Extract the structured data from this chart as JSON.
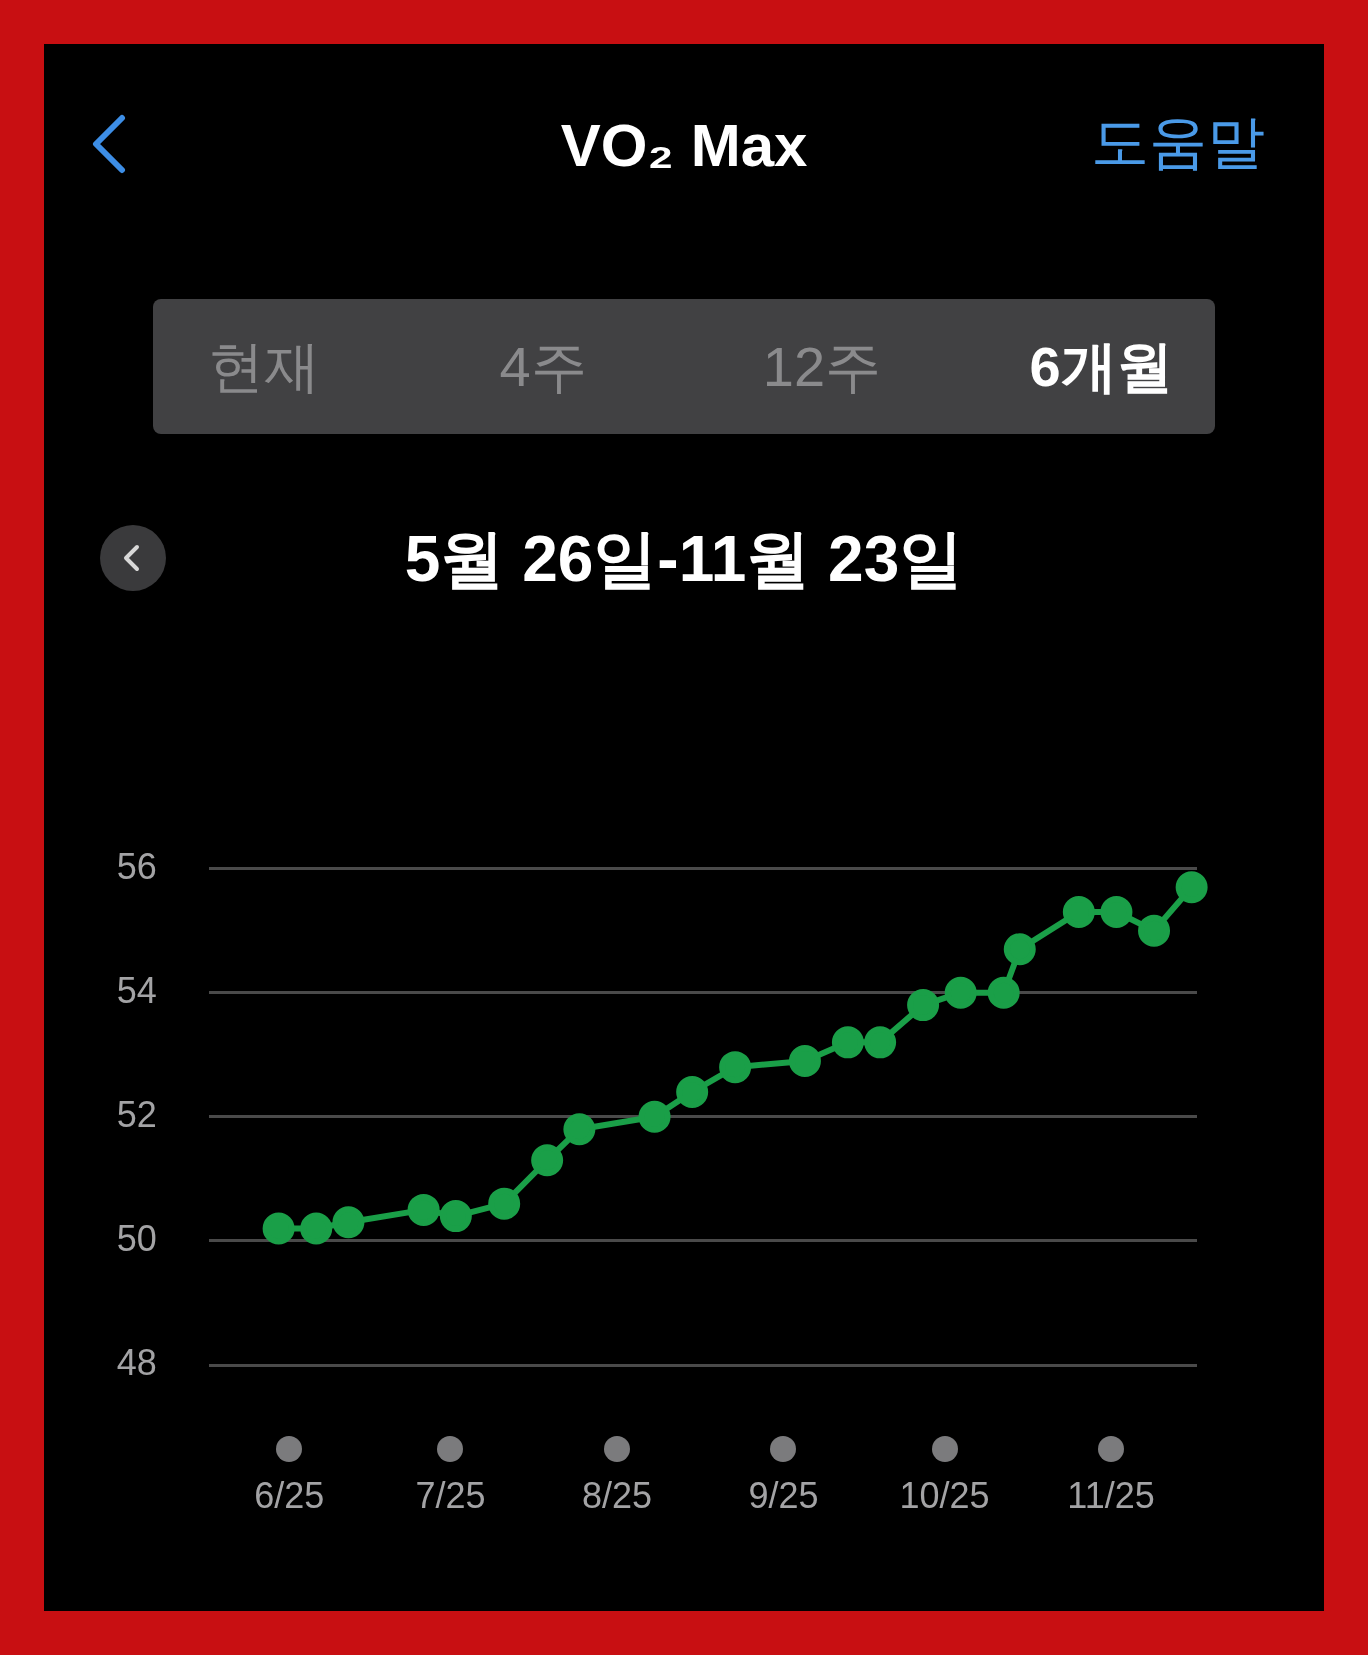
{
  "chart_data": {
    "type": "line",
    "title": "VO₂ Max",
    "subtitle": "5월 26일-11월 23일",
    "annotations": [
      "도움말",
      "현재",
      "4주",
      "12주",
      "6개월"
    ],
    "x": [
      "2025-05-30",
      "2025-06-06",
      "2025-06-12",
      "2025-06-26",
      "2025-07-02",
      "2025-07-11",
      "2025-07-19",
      "2025-07-25",
      "2025-08-08",
      "2025-08-15",
      "2025-08-23",
      "2025-09-05",
      "2025-09-13",
      "2025-09-19",
      "2025-09-27",
      "2025-10-04",
      "2025-10-12",
      "2025-10-15",
      "2025-10-26",
      "2025-11-02",
      "2025-11-09",
      "2025-11-16"
    ],
    "series": [
      {
        "color": "#1a9f48",
        "values": [
          50.2,
          50.2,
          50.3,
          50.5,
          50.4,
          50.6,
          51.3,
          51.8,
          52.0,
          52.4,
          52.8,
          52.9,
          53.2,
          53.2,
          53.8,
          54.0,
          54.0,
          54.7,
          55.3,
          55.3,
          55.0,
          55.7
        ]
      }
    ],
    "xlim": [
      "2025-05-17",
      "2025-11-17"
    ],
    "xticks": [
      {
        "value": "2025-06-01",
        "label": "6/25"
      },
      {
        "value": "2025-07-01",
        "label": "7/25"
      },
      {
        "value": "2025-08-01",
        "label": "8/25"
      },
      {
        "value": "2025-09-01",
        "label": "9/25"
      },
      {
        "value": "2025-10-01",
        "label": "10/25"
      },
      {
        "value": "2025-11-01",
        "label": "11/25"
      }
    ],
    "ylim": [
      48,
      56
    ],
    "yticks": [
      48,
      50,
      52,
      54,
      56
    ],
    "grid": "y",
    "marker": "circle",
    "line_style": "solid"
  }
}
